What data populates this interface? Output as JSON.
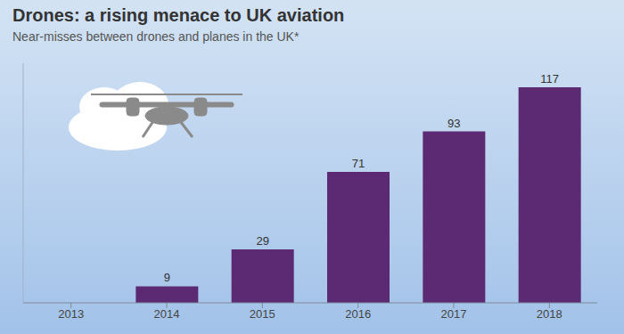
{
  "chart_data": {
    "type": "bar",
    "title": "Drones: a rising menace to UK aviation",
    "subtitle": "Near-misses between drones and planes in the UK*",
    "categories": [
      "2013",
      "2014",
      "2015",
      "2016",
      "2017",
      "2018"
    ],
    "values": [
      0,
      9,
      29,
      71,
      93,
      117
    ],
    "color": "#5c2a72",
    "ylim": [
      0,
      130
    ],
    "grid": false,
    "data_labels": true,
    "tick_labels": "x"
  }
}
